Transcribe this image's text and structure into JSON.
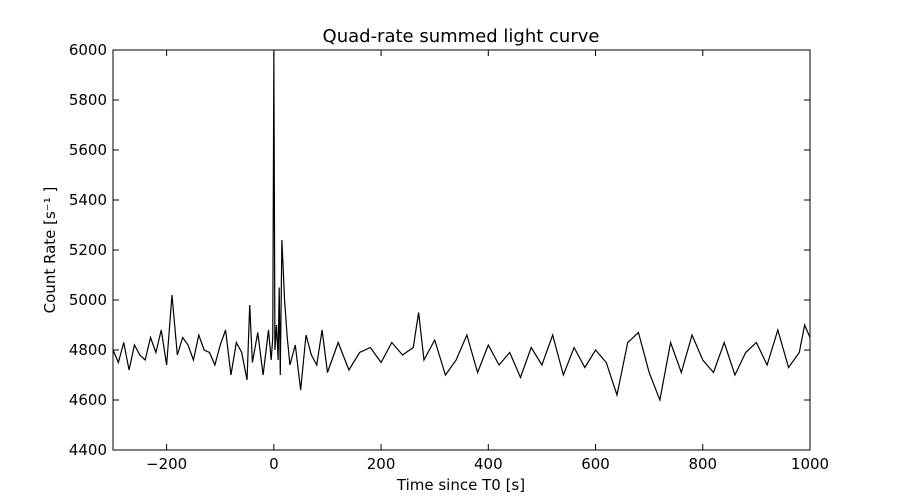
{
  "chart_data": {
    "type": "line",
    "title": "Quad-rate summed light curve",
    "xlabel": "Time since T0 [s]",
    "ylabel": "Count Rate [s⁻¹ ]",
    "xlim": [
      -300,
      1000
    ],
    "ylim": [
      4400,
      6000
    ],
    "xticks": [
      -200,
      0,
      200,
      400,
      600,
      800,
      1000
    ],
    "xtick_labels": [
      "−200",
      "0",
      "200",
      "400",
      "600",
      "800",
      "1000"
    ],
    "yticks": [
      4400,
      4600,
      4800,
      5000,
      5200,
      5400,
      5600,
      5800,
      6000
    ],
    "ytick_labels": [
      "4400",
      "4600",
      "4800",
      "5000",
      "5200",
      "5400",
      "5600",
      "5800",
      "6000"
    ],
    "grid": false,
    "line_color": "#000000",
    "series": [
      {
        "x": [
          -300,
          -290,
          -280,
          -270,
          -260,
          -250,
          -240,
          -230,
          -220,
          -210,
          -200,
          -190,
          -180,
          -170,
          -160,
          -150,
          -140,
          -130,
          -120,
          -110,
          -100,
          -90,
          -80,
          -70,
          -60,
          -50,
          -45,
          -40,
          -30,
          -20,
          -10,
          -5,
          -2,
          0,
          2,
          5,
          8,
          10,
          12,
          15,
          20,
          25,
          30,
          40,
          50,
          60,
          70,
          80,
          90,
          100,
          120,
          140,
          160,
          180,
          200,
          220,
          240,
          260,
          270,
          280,
          300,
          320,
          340,
          360,
          380,
          400,
          420,
          440,
          460,
          480,
          500,
          520,
          540,
          560,
          580,
          600,
          620,
          640,
          660,
          680,
          700,
          720,
          740,
          760,
          780,
          800,
          820,
          840,
          860,
          880,
          900,
          920,
          940,
          960,
          980,
          990,
          1000
        ],
        "y": [
          4800,
          4750,
          4830,
          4720,
          4820,
          4780,
          4760,
          4850,
          4790,
          4880,
          4740,
          5020,
          4780,
          4850,
          4820,
          4760,
          4860,
          4800,
          4790,
          4740,
          4820,
          4880,
          4700,
          4830,
          4790,
          4680,
          4980,
          4750,
          4870,
          4700,
          4880,
          4760,
          4850,
          5990,
          4800,
          4900,
          4760,
          5050,
          4700,
          5240,
          5000,
          4850,
          4740,
          4820,
          4640,
          4860,
          4780,
          4740,
          4880,
          4710,
          4830,
          4720,
          4790,
          4810,
          4750,
          4830,
          4780,
          4810,
          4950,
          4760,
          4840,
          4700,
          4760,
          4860,
          4710,
          4820,
          4740,
          4790,
          4690,
          4810,
          4740,
          4860,
          4700,
          4810,
          4730,
          4800,
          4750,
          4620,
          4830,
          4870,
          4710,
          4600,
          4830,
          4710,
          4860,
          4760,
          4710,
          4830,
          4700,
          4790,
          4830,
          4740,
          4880,
          4730,
          4790,
          4900,
          4850
        ]
      }
    ]
  }
}
